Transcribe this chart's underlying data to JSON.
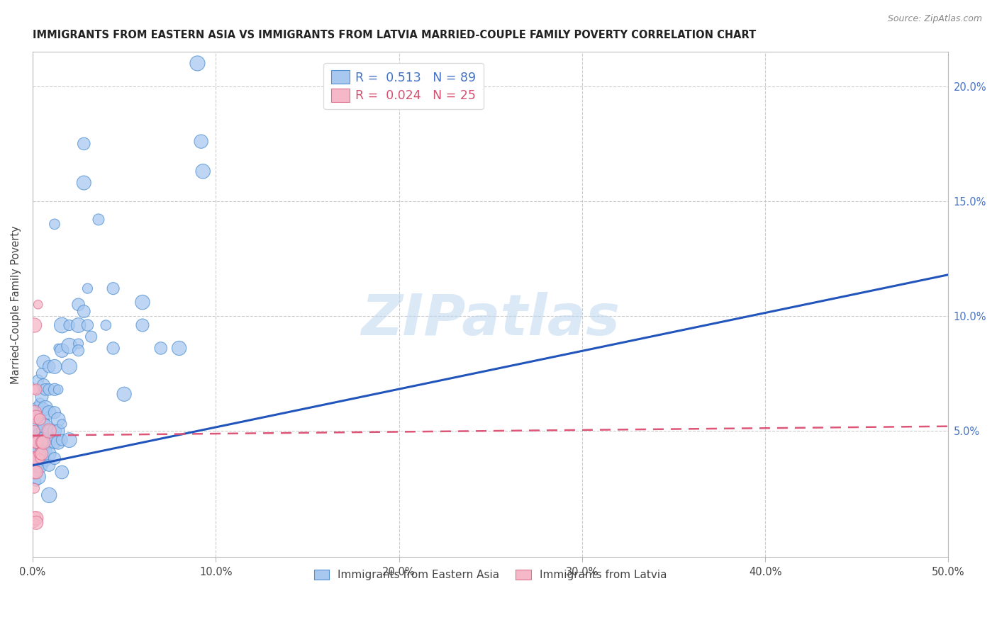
{
  "title": "IMMIGRANTS FROM EASTERN ASIA VS IMMIGRANTS FROM LATVIA MARRIED-COUPLE FAMILY POVERTY CORRELATION CHART",
  "source": "Source: ZipAtlas.com",
  "ylabel": "Married-Couple Family Poverty",
  "xlim": [
    0.0,
    0.5
  ],
  "ylim": [
    -0.005,
    0.215
  ],
  "xticks": [
    0.0,
    0.1,
    0.2,
    0.3,
    0.4,
    0.5
  ],
  "yticks": [
    0.05,
    0.1,
    0.15,
    0.2
  ],
  "xtick_labels": [
    "0.0%",
    "10.0%",
    "20.0%",
    "30.0%",
    "40.0%",
    "50.0%"
  ],
  "ytick_labels": [
    "5.0%",
    "10.0%",
    "15.0%",
    "20.0%"
  ],
  "blue_color": "#a8c8f0",
  "pink_color": "#f5b8c8",
  "blue_edge_color": "#5090d0",
  "pink_edge_color": "#e07090",
  "blue_line_color": "#2255bb",
  "pink_line_color": "#dd5577",
  "background_color": "#ffffff",
  "watermark": "ZIPatlas",
  "blue_scatter": [
    [
      0.002,
      0.068
    ],
    [
      0.002,
      0.058
    ],
    [
      0.002,
      0.05
    ],
    [
      0.002,
      0.044
    ],
    [
      0.002,
      0.04
    ],
    [
      0.002,
      0.036
    ],
    [
      0.002,
      0.032
    ],
    [
      0.002,
      0.028
    ],
    [
      0.003,
      0.072
    ],
    [
      0.003,
      0.06
    ],
    [
      0.003,
      0.052
    ],
    [
      0.003,
      0.046
    ],
    [
      0.003,
      0.042
    ],
    [
      0.003,
      0.038
    ],
    [
      0.003,
      0.034
    ],
    [
      0.003,
      0.03
    ],
    [
      0.004,
      0.062
    ],
    [
      0.004,
      0.055
    ],
    [
      0.004,
      0.048
    ],
    [
      0.004,
      0.043
    ],
    [
      0.004,
      0.039
    ],
    [
      0.004,
      0.035
    ],
    [
      0.005,
      0.075
    ],
    [
      0.005,
      0.065
    ],
    [
      0.005,
      0.056
    ],
    [
      0.005,
      0.05
    ],
    [
      0.005,
      0.045
    ],
    [
      0.005,
      0.04
    ],
    [
      0.006,
      0.08
    ],
    [
      0.006,
      0.07
    ],
    [
      0.006,
      0.06
    ],
    [
      0.006,
      0.053
    ],
    [
      0.006,
      0.047
    ],
    [
      0.006,
      0.041
    ],
    [
      0.007,
      0.068
    ],
    [
      0.007,
      0.06
    ],
    [
      0.007,
      0.052
    ],
    [
      0.007,
      0.046
    ],
    [
      0.007,
      0.041
    ],
    [
      0.007,
      0.037
    ],
    [
      0.009,
      0.078
    ],
    [
      0.009,
      0.068
    ],
    [
      0.009,
      0.058
    ],
    [
      0.009,
      0.05
    ],
    [
      0.009,
      0.045
    ],
    [
      0.009,
      0.04
    ],
    [
      0.009,
      0.035
    ],
    [
      0.009,
      0.022
    ],
    [
      0.012,
      0.14
    ],
    [
      0.012,
      0.078
    ],
    [
      0.012,
      0.068
    ],
    [
      0.012,
      0.058
    ],
    [
      0.012,
      0.05
    ],
    [
      0.012,
      0.045
    ],
    [
      0.012,
      0.038
    ],
    [
      0.014,
      0.086
    ],
    [
      0.014,
      0.068
    ],
    [
      0.014,
      0.055
    ],
    [
      0.014,
      0.05
    ],
    [
      0.014,
      0.045
    ],
    [
      0.016,
      0.096
    ],
    [
      0.016,
      0.085
    ],
    [
      0.016,
      0.053
    ],
    [
      0.016,
      0.046
    ],
    [
      0.016,
      0.032
    ],
    [
      0.02,
      0.096
    ],
    [
      0.02,
      0.087
    ],
    [
      0.02,
      0.078
    ],
    [
      0.02,
      0.046
    ],
    [
      0.025,
      0.105
    ],
    [
      0.025,
      0.096
    ],
    [
      0.025,
      0.088
    ],
    [
      0.025,
      0.085
    ],
    [
      0.028,
      0.175
    ],
    [
      0.028,
      0.158
    ],
    [
      0.028,
      0.102
    ],
    [
      0.03,
      0.112
    ],
    [
      0.03,
      0.096
    ],
    [
      0.032,
      0.091
    ],
    [
      0.036,
      0.142
    ],
    [
      0.04,
      0.096
    ],
    [
      0.044,
      0.112
    ],
    [
      0.044,
      0.086
    ],
    [
      0.05,
      0.066
    ],
    [
      0.06,
      0.106
    ],
    [
      0.06,
      0.096
    ],
    [
      0.07,
      0.086
    ],
    [
      0.08,
      0.086
    ],
    [
      0.09,
      0.21
    ],
    [
      0.092,
      0.176
    ],
    [
      0.093,
      0.163
    ]
  ],
  "pink_scatter": [
    [
      0.001,
      0.096
    ],
    [
      0.001,
      0.068
    ],
    [
      0.001,
      0.058
    ],
    [
      0.001,
      0.05
    ],
    [
      0.001,
      0.045
    ],
    [
      0.001,
      0.038
    ],
    [
      0.001,
      0.032
    ],
    [
      0.001,
      0.025
    ],
    [
      0.001,
      0.012
    ],
    [
      0.001,
      0.01
    ],
    [
      0.002,
      0.068
    ],
    [
      0.002,
      0.056
    ],
    [
      0.002,
      0.045
    ],
    [
      0.002,
      0.038
    ],
    [
      0.002,
      0.032
    ],
    [
      0.002,
      0.012
    ],
    [
      0.002,
      0.01
    ],
    [
      0.003,
      0.105
    ],
    [
      0.004,
      0.055
    ],
    [
      0.004,
      0.04
    ],
    [
      0.004,
      0.038
    ],
    [
      0.005,
      0.045
    ],
    [
      0.005,
      0.04
    ],
    [
      0.006,
      0.045
    ],
    [
      0.009,
      0.05
    ]
  ],
  "blue_line": [
    [
      0.0,
      0.035
    ],
    [
      0.5,
      0.118
    ]
  ],
  "pink_line": [
    [
      0.0,
      0.048
    ],
    [
      0.5,
      0.052
    ]
  ]
}
